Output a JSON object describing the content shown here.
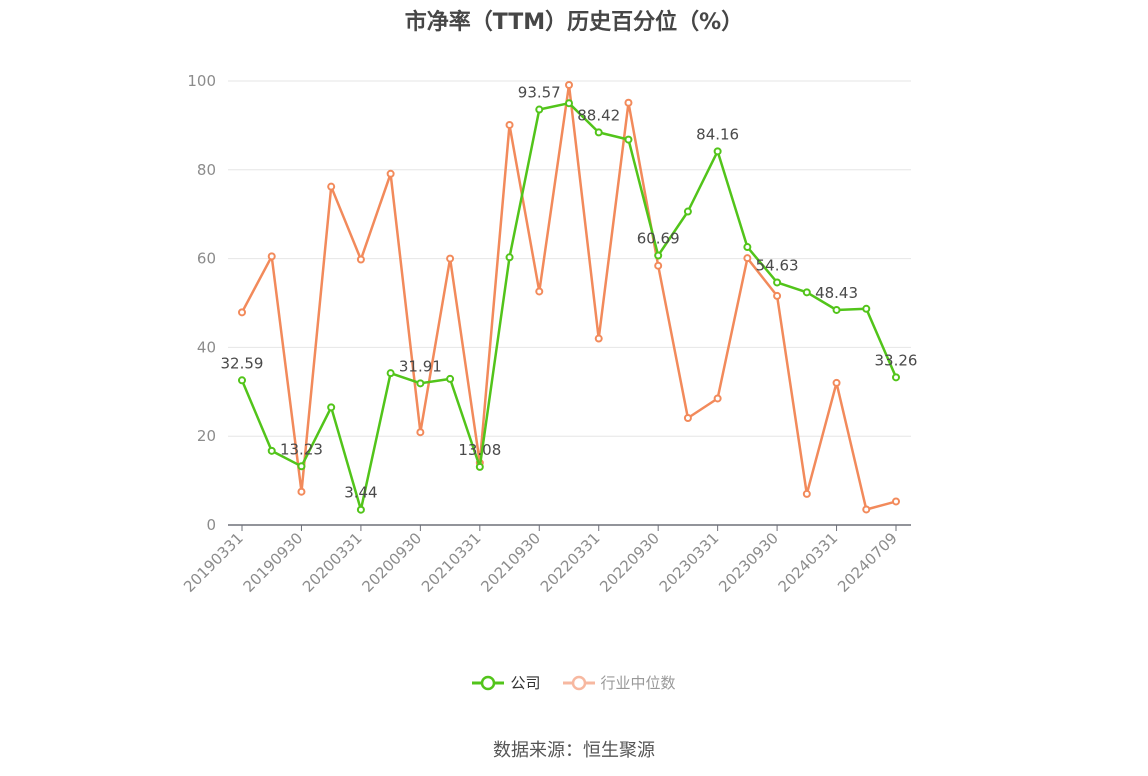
{
  "chart_data": {
    "type": "line",
    "title": "市净率（TTM）历史百分位（%）",
    "x_tick_labels": [
      "20190331",
      "20190930",
      "20200331",
      "20200930",
      "20210331",
      "20210930",
      "20220331",
      "20220930",
      "20230331",
      "20230930",
      "20240331",
      "20240709"
    ],
    "ylim": [
      0,
      100
    ],
    "y_ticks": [
      0,
      20,
      40,
      60,
      80,
      100
    ],
    "grid": true,
    "legend_position": "bottom",
    "series": [
      {
        "name": "公司",
        "color": "#52c41a",
        "values": [
          32.59,
          16.7,
          13.23,
          26.5,
          3.44,
          34.2,
          31.91,
          32.9,
          13.08,
          60.3,
          93.57,
          95.0,
          88.42,
          86.8,
          60.69,
          70.6,
          84.16,
          62.6,
          54.63,
          52.4,
          48.43,
          48.7,
          33.26
        ],
        "labels": {
          "0": "32.59",
          "2": "13.23",
          "4": "3.44",
          "6": "31.91",
          "8": "13.08",
          "10": "93.57",
          "12": "88.42",
          "14": "60.69",
          "16": "84.16",
          "18": "54.63",
          "20": "48.43",
          "22": "33.26"
        }
      },
      {
        "name": "行业中位数",
        "color": "#f28a5b",
        "values": [
          47.9,
          60.5,
          7.5,
          76.2,
          59.8,
          79.1,
          20.9,
          60.0,
          14.0,
          90.1,
          52.6,
          99.1,
          42.0,
          95.1,
          58.4,
          24.1,
          28.5,
          60.1,
          51.6,
          7.0,
          32.0,
          3.5,
          5.3
        ]
      }
    ]
  },
  "legend": {
    "company": "公司",
    "industry": "行业中位数",
    "company_color": "#52c41a",
    "industry_color": "#f7b8a0",
    "company_text_color": "#333333",
    "industry_text_color": "#999999"
  },
  "source": "数据来源：恒生聚源"
}
